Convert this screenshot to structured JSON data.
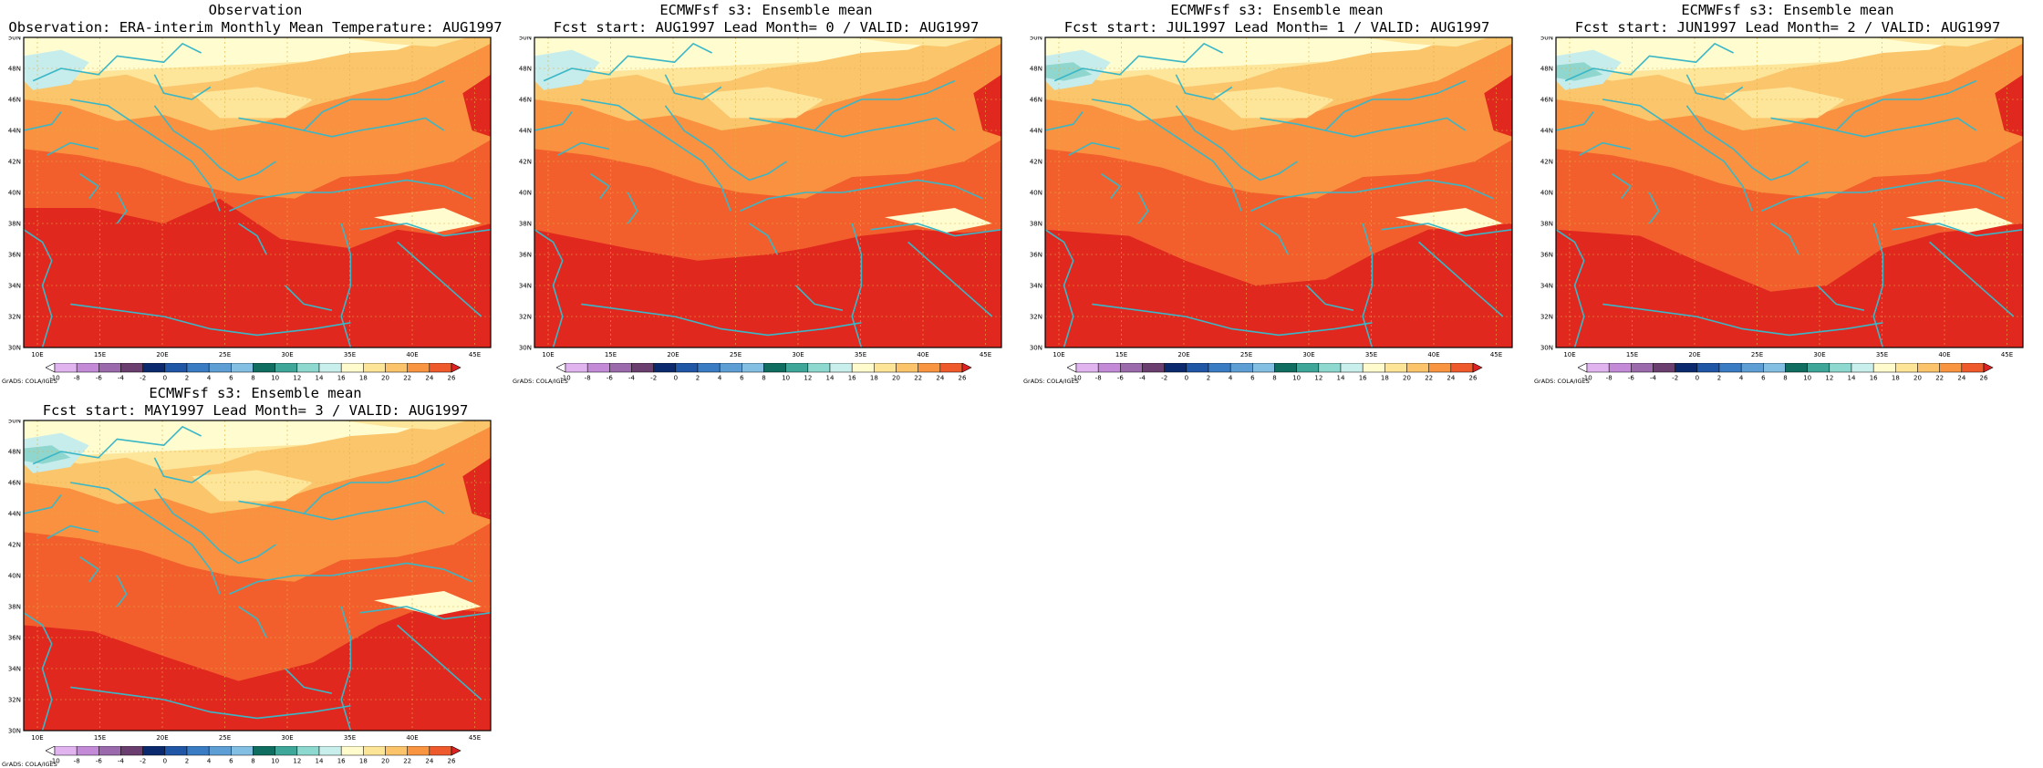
{
  "panels": [
    {
      "title1": "Observation",
      "title2": "Observation: ERA-interim Monthly Mean Temperature: AUG1997"
    },
    {
      "title1": "ECMWFsf s3: Ensemble mean",
      "title2": "Fcst start: AUG1997  Lead Month= 0 / VALID: AUG1997"
    },
    {
      "title1": "ECMWFsf s3: Ensemble mean",
      "title2": "Fcst start: JUL1997  Lead Month= 1 / VALID: AUG1997"
    },
    {
      "title1": "ECMWFsf s3: Ensemble mean",
      "title2": "Fcst start: JUN1997  Lead Month= 2 / VALID: AUG1997"
    },
    {
      "title1": "ECMWFsf s3: Ensemble mean",
      "title2": "Fcst start: MAY1997  Lead Month= 3 / VALID: AUG1997"
    }
  ],
  "lat_labels": [
    "50N",
    "48N",
    "46N",
    "44N",
    "42N",
    "40N",
    "38N",
    "36N",
    "34N",
    "32N",
    "30N"
  ],
  "lon_labels": [
    "10E",
    "15E",
    "20E",
    "25E",
    "30E",
    "35E",
    "40E",
    "45E"
  ],
  "colorbar": {
    "labels": [
      "-10",
      "-8",
      "-6",
      "-4",
      "-2",
      "0",
      "2",
      "4",
      "6",
      "8",
      "10",
      "12",
      "14",
      "16",
      "18",
      "20",
      "22",
      "24",
      "26"
    ],
    "colors": [
      "#ffffff",
      "#e1b4f0",
      "#c38ad8",
      "#9a6aac",
      "#6a3e6e",
      "#0b2a6e",
      "#1f56a5",
      "#3a7cc4",
      "#5d9fd5",
      "#82bfe2",
      "#0f6e5f",
      "#3ea79a",
      "#8ed9cf",
      "#c8efeb",
      "#fffbcc",
      "#fde598",
      "#fbc46a",
      "#f99440",
      "#ef5a2c",
      "#dc2323"
    ]
  },
  "credit": "GrADS: COLA/IGES",
  "colors": {
    "c_hot": "#e0281f",
    "c_24": "#f25f2c",
    "c_22": "#fa9140",
    "c_20": "#fbc56c",
    "c_18": "#fde59a",
    "c_16": "#fffcd0",
    "c_14": "#c6ecec",
    "c_12": "#8fd6cf",
    "coast": "#3ab7c6",
    "grid": "#e3b040"
  }
}
